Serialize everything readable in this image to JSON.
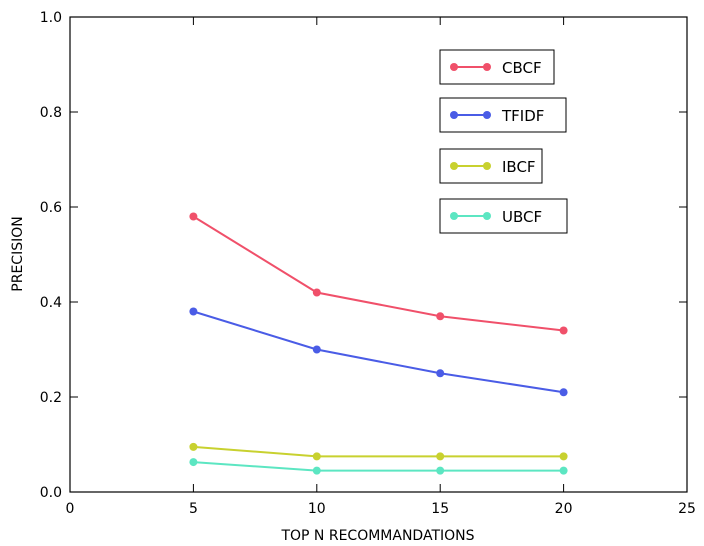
{
  "chart_data": {
    "type": "line",
    "title": "",
    "xlabel": "TOP N RECOMMANDATIONS",
    "ylabel": "PRECISION",
    "xlim": [
      0,
      25
    ],
    "ylim": [
      0.0,
      1.0
    ],
    "x_ticks": [
      "0",
      "5",
      "10",
      "15",
      "20",
      "25"
    ],
    "y_ticks": [
      "0.0",
      "0.2",
      "0.4",
      "0.6",
      "0.8",
      "1.0"
    ],
    "grid": false,
    "legend_placement": "upper-right, separate boxed entries",
    "x": [
      5,
      10,
      15,
      20
    ],
    "series": [
      {
        "name": "CBCF",
        "color": "#f0506a",
        "values": [
          0.58,
          0.42,
          0.37,
          0.34
        ]
      },
      {
        "name": "TFIDF",
        "color": "#4a5ce6",
        "values": [
          0.38,
          0.3,
          0.25,
          0.21
        ]
      },
      {
        "name": "IBCF",
        "color": "#c8d12f",
        "values": [
          0.095,
          0.075,
          0.075,
          0.075
        ]
      },
      {
        "name": "UBCF",
        "color": "#5ce6c2",
        "values": [
          0.063,
          0.045,
          0.045,
          0.045
        ]
      }
    ]
  }
}
